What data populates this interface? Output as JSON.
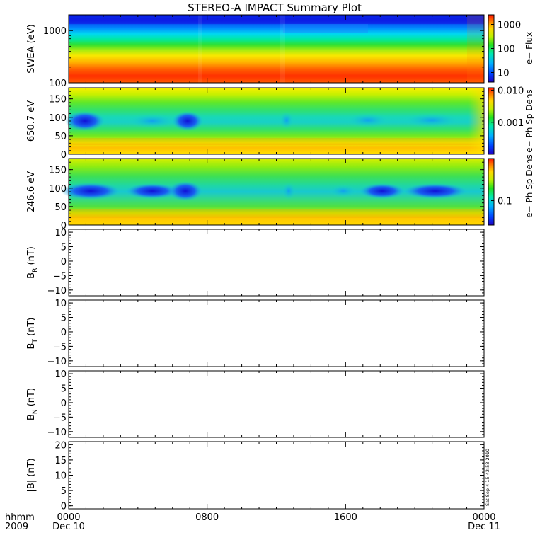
{
  "title": "STEREO-A IMPACT Summary Plot",
  "stamp": "Sat Sep  4 15:42:58 2010",
  "chart_data": {
    "type": "heatmap",
    "title": "STEREO-A IMPACT Summary Plot",
    "x_axis": {
      "ticks": [
        "0000",
        "0800",
        "1600",
        "0000"
      ],
      "dates": [
        "Dec 10",
        "",
        "",
        "Dec 11"
      ],
      "corner_label_top": "hhmm",
      "corner_label_bottom": "2009",
      "range": [
        "2009-12-10 00:00",
        "2009-12-11 00:00"
      ]
    },
    "panels": [
      {
        "type": "heatmap",
        "ylabel": "SWEA (eV)",
        "yscale": "log",
        "ylim": [
          100,
          2000
        ],
        "yticks": [
          "1000",
          "100"
        ],
        "colorbar": {
          "label": "e− Flux",
          "scale": "log",
          "ticks": [
            "1000",
            "100",
            "10"
          ]
        }
      },
      {
        "type": "heatmap",
        "ylabel": "650.7 eV",
        "ylim": [
          0,
          180
        ],
        "yticks": [
          "150",
          "100",
          "50",
          "0"
        ],
        "colorbar": {
          "label": "e− Ph Sp Dens",
          "scale": "log",
          "ticks": [
            "0.010",
            "0.001"
          ]
        }
      },
      {
        "type": "heatmap",
        "ylabel": "246.6 eV",
        "ylim": [
          0,
          180
        ],
        "yticks": [
          "150",
          "100",
          "50",
          "0"
        ],
        "colorbar": {
          "label": "e− Ph Sp Dens",
          "scale": "log",
          "ticks": [
            "0.1"
          ]
        }
      },
      {
        "type": "line",
        "ylabel": "B",
        "ylabel_sub": "R",
        "ylabel_unit": " (nT)",
        "ylim": [
          -12,
          11
        ],
        "yticks": [
          "10",
          "5",
          "0",
          "−5",
          "−10"
        ],
        "series": []
      },
      {
        "type": "line",
        "ylabel": "B",
        "ylabel_sub": "T",
        "ylabel_unit": " (nT)",
        "ylim": [
          -12,
          11
        ],
        "yticks": [
          "10",
          "5",
          "0",
          "−5",
          "−10"
        ],
        "series": []
      },
      {
        "type": "line",
        "ylabel": "B",
        "ylabel_sub": "N",
        "ylabel_unit": " (nT)",
        "ylim": [
          -12,
          11
        ],
        "yticks": [
          "10",
          "5",
          "0",
          "−5",
          "−10"
        ],
        "series": []
      },
      {
        "type": "line",
        "ylabel": "|B| (nT)",
        "ylim": [
          -1,
          21
        ],
        "yticks": [
          "20",
          "15",
          "10",
          "5",
          "0"
        ],
        "series": []
      }
    ]
  }
}
